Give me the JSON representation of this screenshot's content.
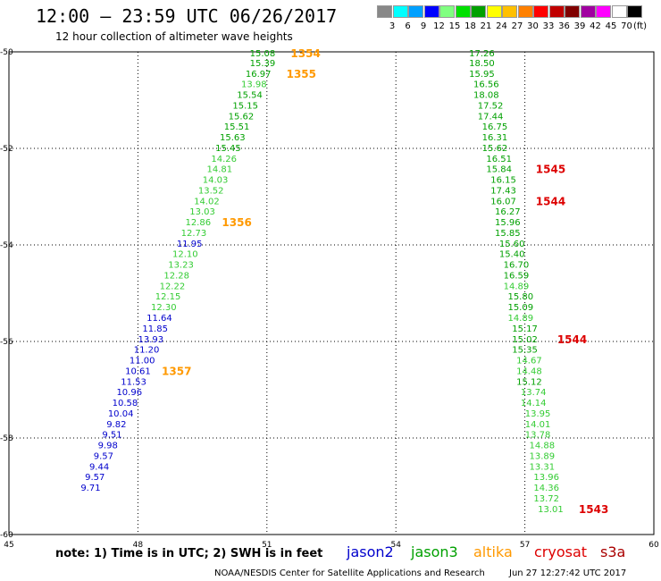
{
  "header": {
    "title": "12:00 – 23:59 UTC 06/26/2017",
    "subtitle": "12 hour collection of altimeter wave heights"
  },
  "color_scale": {
    "unit": "(ft)",
    "bins": [
      {
        "label": "3",
        "color": "#888888"
      },
      {
        "label": "6",
        "color": "#00ffff"
      },
      {
        "label": "9",
        "color": "#00a0ff"
      },
      {
        "label": "12",
        "color": "#0000ff"
      },
      {
        "label": "15",
        "color": "#80ff80"
      },
      {
        "label": "18",
        "color": "#00e000"
      },
      {
        "label": "21",
        "color": "#00a000"
      },
      {
        "label": "24",
        "color": "#ffff00"
      },
      {
        "label": "27",
        "color": "#ffc000"
      },
      {
        "label": "30",
        "color": "#ff8000"
      },
      {
        "label": "33",
        "color": "#ff0000"
      },
      {
        "label": "36",
        "color": "#c00000"
      },
      {
        "label": "39",
        "color": "#800000"
      },
      {
        "label": "42",
        "color": "#a000a0"
      },
      {
        "label": "45",
        "color": "#ff00ff"
      },
      {
        "label": "70",
        "color": "#ffffff"
      },
      {
        "label": "",
        "color": "#000000"
      }
    ]
  },
  "map": {
    "lon_range": [
      45,
      60
    ],
    "lat_range": [
      -60,
      -50
    ],
    "lon_ticks": [
      "45",
      "48",
      "51",
      "54",
      "57",
      "60"
    ],
    "lat_ticks": [
      "-50",
      "-52",
      "-54",
      "-56",
      "-58",
      "-60"
    ],
    "grid": true
  },
  "chart_data": {
    "type": "scatter",
    "x_label": "longitude",
    "y_label": "latitude",
    "colors": {
      "blue": "#0000cc",
      "lgreen": "#33cc33",
      "green": "#00a000",
      "orange": "#ff9900",
      "red": "#dd0000"
    },
    "points": [
      {
        "lon": 50.9,
        "lat": -50.02,
        "v": "15.08",
        "c": "green"
      },
      {
        "lon": 50.9,
        "lat": -50.22,
        "v": "15.39",
        "c": "green"
      },
      {
        "lon": 50.8,
        "lat": -50.44,
        "v": "16.97",
        "c": "green"
      },
      {
        "lon": 50.7,
        "lat": -50.66,
        "v": "13.98",
        "c": "lgreen"
      },
      {
        "lon": 50.6,
        "lat": -50.88,
        "v": "15.54",
        "c": "green"
      },
      {
        "lon": 50.5,
        "lat": -51.1,
        "v": "15.15",
        "c": "green"
      },
      {
        "lon": 50.4,
        "lat": -51.32,
        "v": "15.62",
        "c": "green"
      },
      {
        "lon": 50.3,
        "lat": -51.54,
        "v": "15.51",
        "c": "green"
      },
      {
        "lon": 50.2,
        "lat": -51.76,
        "v": "15.63",
        "c": "green"
      },
      {
        "lon": 50.1,
        "lat": -51.98,
        "v": "15.45",
        "c": "green"
      },
      {
        "lon": 50.0,
        "lat": -52.2,
        "v": "14.26",
        "c": "lgreen"
      },
      {
        "lon": 49.9,
        "lat": -52.42,
        "v": "14.81",
        "c": "lgreen"
      },
      {
        "lon": 49.8,
        "lat": -52.64,
        "v": "14.03",
        "c": "lgreen"
      },
      {
        "lon": 49.7,
        "lat": -52.86,
        "v": "13.52",
        "c": "lgreen"
      },
      {
        "lon": 49.6,
        "lat": -53.08,
        "v": "14.02",
        "c": "lgreen"
      },
      {
        "lon": 49.5,
        "lat": -53.3,
        "v": "13.03",
        "c": "lgreen"
      },
      {
        "lon": 49.4,
        "lat": -53.52,
        "v": "12.86",
        "c": "lgreen"
      },
      {
        "lon": 49.3,
        "lat": -53.74,
        "v": "12.73",
        "c": "lgreen"
      },
      {
        "lon": 49.2,
        "lat": -53.96,
        "v": "11.95",
        "c": "blue"
      },
      {
        "lon": 49.1,
        "lat": -54.18,
        "v": "12.10",
        "c": "lgreen"
      },
      {
        "lon": 49.0,
        "lat": -54.4,
        "v": "13.23",
        "c": "lgreen"
      },
      {
        "lon": 48.9,
        "lat": -54.62,
        "v": "12.28",
        "c": "lgreen"
      },
      {
        "lon": 48.8,
        "lat": -54.84,
        "v": "12.22",
        "c": "lgreen"
      },
      {
        "lon": 48.7,
        "lat": -55.06,
        "v": "12.15",
        "c": "lgreen"
      },
      {
        "lon": 48.6,
        "lat": -55.28,
        "v": "12.30",
        "c": "lgreen"
      },
      {
        "lon": 48.5,
        "lat": -55.5,
        "v": "11.64",
        "c": "blue"
      },
      {
        "lon": 48.4,
        "lat": -55.72,
        "v": "11.85",
        "c": "blue"
      },
      {
        "lon": 48.3,
        "lat": -55.94,
        "v": "13.93",
        "c": "blue"
      },
      {
        "lon": 48.2,
        "lat": -56.16,
        "v": "11.20",
        "c": "blue"
      },
      {
        "lon": 48.1,
        "lat": -56.38,
        "v": "11.00",
        "c": "blue"
      },
      {
        "lon": 48.0,
        "lat": -56.6,
        "v": "10.61",
        "c": "blue"
      },
      {
        "lon": 47.9,
        "lat": -56.82,
        "v": "11.53",
        "c": "blue"
      },
      {
        "lon": 47.8,
        "lat": -57.04,
        "v": "10.96",
        "c": "blue"
      },
      {
        "lon": 47.7,
        "lat": -57.26,
        "v": "10.58",
        "c": "blue"
      },
      {
        "lon": 47.6,
        "lat": -57.48,
        "v": "10.04",
        "c": "blue"
      },
      {
        "lon": 47.5,
        "lat": -57.7,
        "v": "9.82",
        "c": "blue"
      },
      {
        "lon": 47.4,
        "lat": -57.92,
        "v": "9.51",
        "c": "blue"
      },
      {
        "lon": 47.3,
        "lat": -58.14,
        "v": "9.98",
        "c": "blue"
      },
      {
        "lon": 47.2,
        "lat": -58.36,
        "v": "9.57",
        "c": "blue"
      },
      {
        "lon": 47.1,
        "lat": -58.58,
        "v": "9.44",
        "c": "blue"
      },
      {
        "lon": 47.0,
        "lat": -58.8,
        "v": "9.57",
        "c": "blue"
      },
      {
        "lon": 46.9,
        "lat": -59.02,
        "v": "9.71",
        "c": "blue"
      },
      {
        "lon": 56.0,
        "lat": -50.02,
        "v": "17.26",
        "c": "green"
      },
      {
        "lon": 56.0,
        "lat": -50.22,
        "v": "18.50",
        "c": "green"
      },
      {
        "lon": 56.0,
        "lat": -50.44,
        "v": "15.95",
        "c": "green"
      },
      {
        "lon": 56.1,
        "lat": -50.66,
        "v": "16.56",
        "c": "green"
      },
      {
        "lon": 56.1,
        "lat": -50.88,
        "v": "18.08",
        "c": "green"
      },
      {
        "lon": 56.2,
        "lat": -51.1,
        "v": "17.52",
        "c": "green"
      },
      {
        "lon": 56.2,
        "lat": -51.32,
        "v": "17.44",
        "c": "green"
      },
      {
        "lon": 56.3,
        "lat": -51.54,
        "v": "16.75",
        "c": "green"
      },
      {
        "lon": 56.3,
        "lat": -51.76,
        "v": "16.31",
        "c": "green"
      },
      {
        "lon": 56.3,
        "lat": -51.98,
        "v": "15.62",
        "c": "green"
      },
      {
        "lon": 56.4,
        "lat": -52.2,
        "v": "16.51",
        "c": "green"
      },
      {
        "lon": 56.4,
        "lat": -52.42,
        "v": "15.84",
        "c": "green"
      },
      {
        "lon": 56.5,
        "lat": -52.64,
        "v": "16.15",
        "c": "green"
      },
      {
        "lon": 56.5,
        "lat": -52.86,
        "v": "17.43",
        "c": "green"
      },
      {
        "lon": 56.5,
        "lat": -53.08,
        "v": "16.07",
        "c": "green"
      },
      {
        "lon": 56.6,
        "lat": -53.3,
        "v": "16.27",
        "c": "green"
      },
      {
        "lon": 56.6,
        "lat": -53.52,
        "v": "15.96",
        "c": "green"
      },
      {
        "lon": 56.6,
        "lat": -53.74,
        "v": "15.85",
        "c": "green"
      },
      {
        "lon": 56.7,
        "lat": -53.96,
        "v": "15.60",
        "c": "green"
      },
      {
        "lon": 56.7,
        "lat": -54.18,
        "v": "15.40",
        "c": "green"
      },
      {
        "lon": 56.8,
        "lat": -54.4,
        "v": "16.70",
        "c": "green"
      },
      {
        "lon": 56.8,
        "lat": -54.62,
        "v": "16.59",
        "c": "green"
      },
      {
        "lon": 56.8,
        "lat": -54.84,
        "v": "14.89",
        "c": "lgreen"
      },
      {
        "lon": 56.9,
        "lat": -55.06,
        "v": "15.80",
        "c": "green"
      },
      {
        "lon": 56.9,
        "lat": -55.28,
        "v": "15.09",
        "c": "green"
      },
      {
        "lon": 56.9,
        "lat": -55.5,
        "v": "14.89",
        "c": "lgreen"
      },
      {
        "lon": 57.0,
        "lat": -55.72,
        "v": "15.17",
        "c": "green"
      },
      {
        "lon": 57.0,
        "lat": -55.94,
        "v": "15.02",
        "c": "green"
      },
      {
        "lon": 57.0,
        "lat": -56.16,
        "v": "15.35",
        "c": "green"
      },
      {
        "lon": 57.1,
        "lat": -56.38,
        "v": "14.67",
        "c": "lgreen"
      },
      {
        "lon": 57.1,
        "lat": -56.6,
        "v": "14.48",
        "c": "lgreen"
      },
      {
        "lon": 57.1,
        "lat": -56.82,
        "v": "15.12",
        "c": "green"
      },
      {
        "lon": 57.2,
        "lat": -57.04,
        "v": "13.74",
        "c": "lgreen"
      },
      {
        "lon": 57.2,
        "lat": -57.26,
        "v": "14.14",
        "c": "lgreen"
      },
      {
        "lon": 57.3,
        "lat": -57.48,
        "v": "13.95",
        "c": "lgreen"
      },
      {
        "lon": 57.3,
        "lat": -57.7,
        "v": "14.01",
        "c": "lgreen"
      },
      {
        "lon": 57.3,
        "lat": -57.92,
        "v": "13.78",
        "c": "lgreen"
      },
      {
        "lon": 57.4,
        "lat": -58.14,
        "v": "14.88",
        "c": "lgreen"
      },
      {
        "lon": 57.4,
        "lat": -58.36,
        "v": "13.89",
        "c": "lgreen"
      },
      {
        "lon": 57.4,
        "lat": -58.58,
        "v": "13.31",
        "c": "lgreen"
      },
      {
        "lon": 57.5,
        "lat": -58.8,
        "v": "13.96",
        "c": "lgreen"
      },
      {
        "lon": 57.5,
        "lat": -59.02,
        "v": "14.36",
        "c": "lgreen"
      },
      {
        "lon": 57.5,
        "lat": -59.24,
        "v": "13.72",
        "c": "lgreen"
      },
      {
        "lon": 57.6,
        "lat": -59.46,
        "v": "13.01",
        "c": "lgreen"
      }
    ],
    "time_labels": [
      {
        "lon": 51.9,
        "lat": -50.02,
        "t": "1354",
        "c": "orange"
      },
      {
        "lon": 51.8,
        "lat": -50.44,
        "t": "1355",
        "c": "orange"
      },
      {
        "lon": 50.3,
        "lat": -53.52,
        "t": "1356",
        "c": "orange"
      },
      {
        "lon": 48.9,
        "lat": -56.6,
        "t": "1357",
        "c": "orange"
      },
      {
        "lon": 57.6,
        "lat": -52.42,
        "t": "1545",
        "c": "red"
      },
      {
        "lon": 57.6,
        "lat": -53.08,
        "t": "1544",
        "c": "red"
      },
      {
        "lon": 58.1,
        "lat": -55.94,
        "t": "1544",
        "c": "red"
      },
      {
        "lon": 58.6,
        "lat": -59.46,
        "t": "1543",
        "c": "red"
      }
    ]
  },
  "footer": {
    "note": "note: 1) Time is in UTC; 2) SWH is in feet",
    "satellites": [
      {
        "name": "jason2",
        "color": "#0000cc"
      },
      {
        "name": "jason3",
        "color": "#00a000"
      },
      {
        "name": "altika",
        "color": "#ff9900"
      },
      {
        "name": "cryosat",
        "color": "#dd0000"
      },
      {
        "name": "s3a",
        "color": "#aa0000"
      }
    ],
    "credit": "NOAA/NESDIS Center for Satellite Applications and Research",
    "timestamp": "Jun 27 12:27:42 UTC 2017"
  }
}
